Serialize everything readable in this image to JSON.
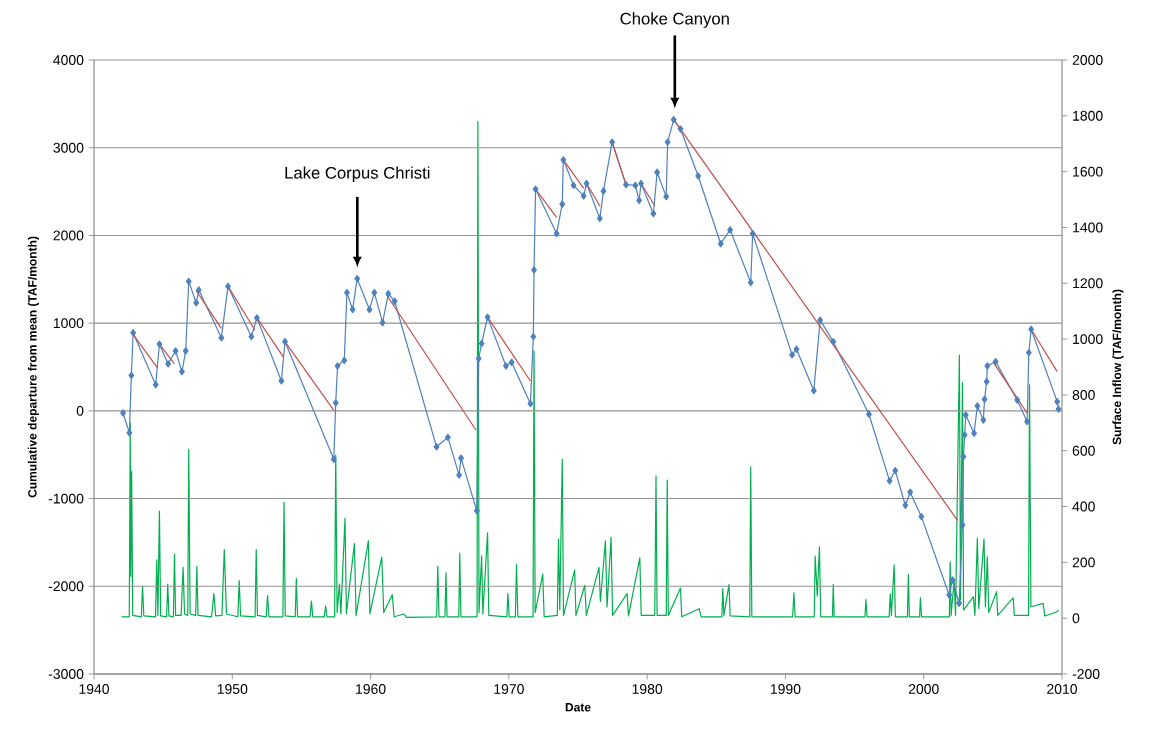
{
  "chart_data": {
    "type": "line",
    "xlabel": "Date",
    "ylabel": "Cumulative departure from mean (TAF/month)",
    "y2label": "Surface Inflow (TAF/month)",
    "xlim": [
      1940,
      2010
    ],
    "xticks": [
      1940,
      1950,
      1960,
      1970,
      1980,
      1990,
      2000,
      2010
    ],
    "ylim": [
      -3000,
      4000
    ],
    "yticks": [
      -3000,
      -2000,
      -1000,
      0,
      1000,
      2000,
      3000,
      4000
    ],
    "y2lim": [
      -200,
      2000
    ],
    "y2ticks": [
      -200,
      0,
      200,
      400,
      600,
      800,
      1000,
      1200,
      1400,
      1600,
      1800,
      2000
    ],
    "grid": "y",
    "annotations": [
      "Lake Corpus Christi",
      "Choke Canyon"
    ],
    "series": [
      {
        "color": "#00b050",
        "marker": "none",
        "axis": "y2",
        "x": [
          1942.0,
          1942.55,
          1942.62,
          1942.66,
          1942.72,
          1942.8,
          1943.42,
          1943.51,
          1943.6,
          1944.45,
          1944.54,
          1944.62,
          1944.73,
          1944.82,
          1945.25,
          1945.33,
          1945.42,
          1945.74,
          1945.82,
          1945.9,
          1946.3,
          1946.44,
          1946.55,
          1946.78,
          1946.85,
          1946.95,
          1947.35,
          1947.44,
          1947.52,
          1948.5,
          1948.67,
          1948.8,
          1949.25,
          1949.42,
          1949.58,
          1950.4,
          1950.5,
          1950.6,
          1951.65,
          1951.73,
          1951.82,
          1952.45,
          1952.55,
          1952.65,
          1953.66,
          1953.74,
          1953.83,
          1954.55,
          1954.63,
          1954.72,
          1955.62,
          1955.72,
          1955.82,
          1956.65,
          1956.75,
          1956.85,
          1957.4,
          1957.48,
          1957.58,
          1957.75,
          1957.85,
          1958.15,
          1958.25,
          1958.83,
          1958.95,
          1959.84,
          1959.95,
          1960.81,
          1960.95,
          1961.57,
          1961.7,
          1962.42,
          1962.6,
          1964.78,
          1964.86,
          1964.95,
          1965.38,
          1965.45,
          1965.53,
          1966.38,
          1966.45,
          1966.53,
          1967.7,
          1967.76,
          1967.84,
          1968.03,
          1968.12,
          1968.46,
          1968.55,
          1969.85,
          1969.93,
          1970.02,
          1970.47,
          1970.55,
          1970.65,
          1971.75,
          1971.82,
          1971.9,
          1972.45,
          1972.55,
          1973.5,
          1973.59,
          1973.68,
          1973.86,
          1973.95,
          1974.76,
          1974.85,
          1975.49,
          1975.6,
          1976.52,
          1976.62,
          1976.98,
          1977.1,
          1977.39,
          1977.5,
          1978.55,
          1978.65,
          1979.47,
          1979.57,
          1980.55,
          1980.64,
          1980.72,
          1981.38,
          1981.45,
          1981.53,
          1982.41,
          1982.5,
          1983.77,
          1983.9,
          1985.4,
          1985.47,
          1985.55,
          1985.92,
          1986.0,
          1987.42,
          1987.49,
          1987.57,
          1990.52,
          1990.61,
          1990.7,
          1992.08,
          1992.15,
          1992.3,
          1992.46,
          1992.55,
          1993.4,
          1993.46,
          1993.52,
          1995.75,
          1995.82,
          1995.9,
          1997.5,
          1997.58,
          1997.66,
          1997.86,
          1997.95,
          1998.82,
          1998.89,
          1998.96,
          1999.7,
          1999.76,
          1999.84,
          2001.85,
          2001.91,
          2001.98,
          2002.2,
          2002.3,
          2002.58,
          2002.66,
          2002.8,
          2002.88,
          2003.59,
          2003.7,
          2003.88,
          2003.98,
          2004.36,
          2004.46,
          2004.6,
          2004.7,
          2005.27,
          2005.35,
          2006.47,
          2006.55,
          2007.58,
          2007.65,
          2007.75,
          2008.64,
          2008.75,
          2009.65,
          2009.75
        ],
        "values": [
          5,
          5,
          699,
          150,
          526,
          10,
          5,
          115,
          8,
          5,
          209,
          10,
          384,
          8,
          5,
          122,
          8,
          5,
          230,
          10,
          10,
          182,
          15,
          10,
          604,
          15,
          10,
          186,
          10,
          5,
          88,
          8,
          10,
          246,
          15,
          5,
          135,
          8,
          5,
          246,
          10,
          5,
          81,
          5,
          5,
          416,
          8,
          5,
          142,
          5,
          5,
          61,
          5,
          5,
          44,
          5,
          5,
          583,
          20,
          122,
          15,
          358,
          15,
          267,
          10,
          277,
          15,
          219,
          20,
          84,
          5,
          15,
          3,
          5,
          186,
          5,
          5,
          162,
          5,
          5,
          232,
          5,
          5,
          1780,
          20,
          223,
          15,
          306,
          10,
          5,
          88,
          5,
          5,
          192,
          5,
          5,
          957,
          20,
          158,
          5,
          10,
          283,
          30,
          569,
          10,
          172,
          10,
          118,
          10,
          182,
          60,
          277,
          40,
          290,
          10,
          88,
          8,
          216,
          10,
          10,
          510,
          10,
          10,
          495,
          10,
          108,
          5,
          34,
          5,
          5,
          106,
          10,
          121,
          8,
          5,
          542,
          5,
          5,
          91,
          5,
          5,
          222,
          80,
          256,
          5,
          5,
          121,
          5,
          5,
          67,
          5,
          5,
          87,
          10,
          191,
          5,
          5,
          157,
          5,
          5,
          73,
          5,
          5,
          202,
          10,
          137,
          10,
          943,
          65,
          844,
          29,
          77,
          10,
          286,
          35,
          283,
          40,
          220,
          20,
          95,
          10,
          73,
          10,
          10,
          836,
          41,
          53,
          8,
          23,
          30
        ]
      },
      {
        "color": "#4f81bd",
        "marker": "diamond",
        "x": [
          1942.1,
          1942.56,
          1942.7,
          1942.83,
          1944.46,
          1944.73,
          1945.36,
          1945.9,
          1946.36,
          1946.63,
          1946.85,
          1947.39,
          1947.58,
          1949.21,
          1949.69,
          1951.38,
          1951.78,
          1953.55,
          1953.81,
          1957.34,
          1957.48,
          1957.61,
          1958.1,
          1958.29,
          1958.7,
          1959.03,
          1959.92,
          1960.27,
          1960.87,
          1961.28,
          1961.74,
          1964.77,
          1965.59,
          1966.4,
          1966.54,
          1967.68,
          1967.82,
          1968.03,
          1968.46,
          1969.79,
          1970.2,
          1971.56,
          1971.77,
          1971.82,
          1971.93,
          1973.45,
          1973.86,
          1973.94,
          1974.68,
          1975.41,
          1975.62,
          1976.58,
          1976.84,
          1977.47,
          1978.47,
          1979.15,
          1979.42,
          1979.56,
          1980.45,
          1980.72,
          1981.38,
          1981.48,
          1981.92,
          1982.41,
          1983.69,
          1985.32,
          1986.0,
          1987.49,
          1987.63,
          1990.48,
          1990.8,
          1992.05,
          1992.51,
          1993.46,
          1996.04,
          1997.53,
          1997.94,
          1998.67,
          1999.02,
          1999.83,
          2001.84,
          2002.08,
          2002.56,
          2002.8,
          2002.87,
          2002.96,
          2003.04,
          2003.64,
          2003.88,
          2004.31,
          2004.4,
          2004.55,
          2004.6,
          2005.2,
          2006.76,
          2007.48,
          2007.6,
          2007.77,
          2009.65,
          2009.75
        ],
        "values": [
          -24,
          -250,
          405,
          890,
          298,
          760,
          535,
          683,
          447,
          683,
          1476,
          1232,
          1378,
          833,
          1420,
          846,
          1060,
          341,
          790,
          -552,
          91,
          512,
          576,
          1348,
          1155,
          1507,
          1155,
          1348,
          1005,
          1335,
          1250,
          -410,
          -303,
          -732,
          -539,
          -1140,
          597,
          768,
          1069,
          512,
          554,
          82,
          846,
          1606,
          2528,
          2021,
          2356,
          2862,
          2571,
          2450,
          2592,
          2194,
          2506,
          3063,
          2579,
          2571,
          2399,
          2592,
          2248,
          2720,
          2442,
          3063,
          3321,
          3214,
          2678,
          1905,
          2064,
          1463,
          2020,
          638,
          703,
          231,
          1034,
          789,
          -39,
          -798,
          -682,
          -1076,
          -927,
          -1206,
          -2099,
          -1928,
          -2193,
          -1301,
          -522,
          -275,
          -47,
          -255,
          56,
          -104,
          132,
          333,
          512,
          561,
          124,
          -123,
          664,
          930,
          105,
          20
        ]
      },
      {
        "color": "#c0504d",
        "marker": "none",
        "x": [
          1942.83,
          1944.59
        ],
        "values": [
          870,
          490
        ]
      },
      {
        "color": "#c0504d",
        "marker": "none",
        "x": [
          1944.73,
          1945.81
        ],
        "values": [
          760,
          535
        ]
      },
      {
        "color": "#c0504d",
        "marker": "none",
        "x": [
          1947.39,
          1949.21
        ],
        "values": [
          1369,
          941
        ]
      },
      {
        "color": "#c0504d",
        "marker": "none",
        "x": [
          1949.69,
          1951.64
        ],
        "values": [
          1420,
          919
        ]
      },
      {
        "color": "#c0504d",
        "marker": "none",
        "x": [
          1951.78,
          1953.68
        ],
        "values": [
          1060,
          619
        ]
      },
      {
        "color": "#c0504d",
        "marker": "none",
        "x": [
          1953.81,
          1957.34
        ],
        "values": [
          790,
          6
        ]
      },
      {
        "color": "#c0504d",
        "marker": "none",
        "x": [
          1961.14,
          1967.62
        ],
        "values": [
          1327,
          -218
        ]
      },
      {
        "color": "#c0504d",
        "marker": "none",
        "x": [
          1968.46,
          1971.56
        ],
        "values": [
          1069,
          340
        ]
      },
      {
        "color": "#c0504d",
        "marker": "none",
        "x": [
          1971.93,
          1973.45
        ],
        "values": [
          2528,
          2206
        ]
      },
      {
        "color": "#c0504d",
        "marker": "none",
        "x": [
          1973.94,
          1975.41
        ],
        "values": [
          2862,
          2537
        ]
      },
      {
        "color": "#c0504d",
        "marker": "none",
        "x": [
          1975.62,
          1976.58
        ],
        "values": [
          2592,
          2335
        ]
      },
      {
        "color": "#c0504d",
        "marker": "none",
        "x": [
          1977.47,
          1978.47
        ],
        "values": [
          3063,
          2579
        ]
      },
      {
        "color": "#c0504d",
        "marker": "none",
        "x": [
          1979.56,
          1980.56
        ],
        "values": [
          2592,
          2335
        ]
      },
      {
        "color": "#c0504d",
        "marker": "none",
        "x": [
          1981.92,
          2002.44
        ],
        "values": [
          3321,
          -1248
        ]
      },
      {
        "color": "#c0504d",
        "marker": "none",
        "x": [
          2005.08,
          2007.48
        ],
        "values": [
          542,
          -27
        ]
      },
      {
        "color": "#c0504d",
        "marker": "none",
        "x": [
          2007.77,
          2009.65
        ],
        "values": [
          930,
          447
        ]
      }
    ]
  }
}
